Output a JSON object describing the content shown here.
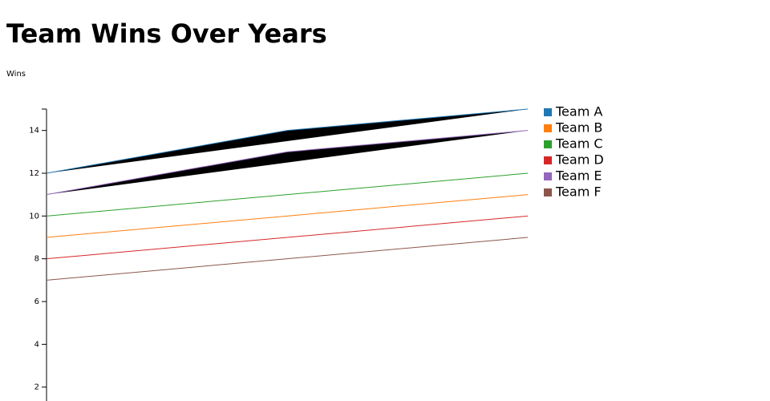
{
  "chart_data": {
    "type": "line",
    "title": "Team Wins Over Years",
    "y_label": "Wins",
    "categories": [
      null,
      null,
      null
    ],
    "series": [
      {
        "name": "Team A",
        "color": "#1f77b4",
        "values": [
          12,
          14,
          15
        ]
      },
      {
        "name": "Team B",
        "color": "#ff7f0e",
        "values": [
          9,
          10,
          11
        ]
      },
      {
        "name": "Team C",
        "color": "#2ca02c",
        "values": [
          10,
          11,
          12
        ]
      },
      {
        "name": "Team D",
        "color": "#d62728",
        "values": [
          8,
          9,
          10
        ]
      },
      {
        "name": "Team E",
        "color": "#9467bd",
        "values": [
          11,
          13,
          14
        ]
      },
      {
        "name": "Team F",
        "color": "#8c564b",
        "values": [
          7,
          8,
          9
        ]
      }
    ],
    "ylim": [
      0,
      15
    ],
    "yticks": [
      2,
      4,
      6,
      8,
      10,
      12,
      14
    ]
  }
}
